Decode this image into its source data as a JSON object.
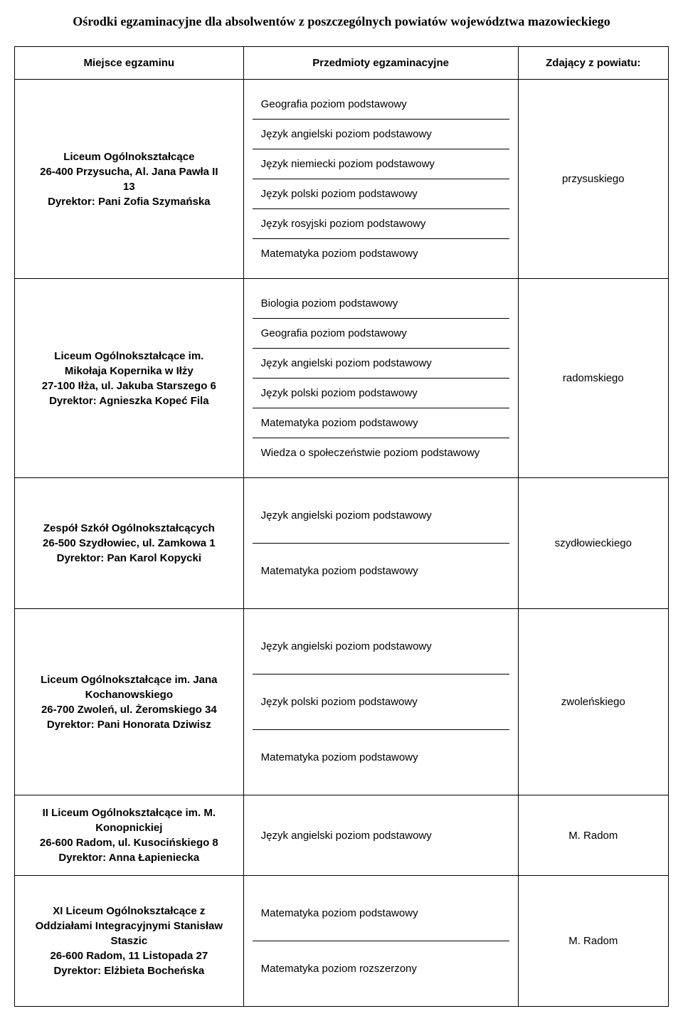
{
  "title": "Ośrodki egzaminacyjne dla absolwentów z poszczególnych powiatów województwa mazowieckiego",
  "headers": {
    "place": "Miejsce egzaminu",
    "subjects": "Przedmioty egzaminacyjne",
    "region": "Zdający z powiatu:"
  },
  "rows": [
    {
      "place": [
        "Liceum Ogólnokształcące",
        "26-400 Przysucha, Al. Jana Pawła II",
        "13",
        "Dyrektor: Pani Zofia Szymańska"
      ],
      "subjects": [
        "Geografia poziom podstawowy",
        "Język angielski poziom podstawowy",
        "Język niemiecki poziom podstawowy",
        "Język polski poziom podstawowy",
        "Język rosyjski poziom podstawowy",
        "Matematyka poziom podstawowy"
      ],
      "region": "przysuskiego"
    },
    {
      "place": [
        "Liceum Ogólnokształcące im.",
        "Mikołaja Kopernika w Iłży",
        "27-100 Iłża, ul. Jakuba Starszego 6",
        "Dyrektor: Agnieszka Kopeć Fila"
      ],
      "subjects": [
        "Biologia poziom podstawowy",
        "Geografia poziom podstawowy",
        "Język angielski poziom podstawowy",
        "Język polski poziom podstawowy",
        "Matematyka poziom podstawowy",
        "Wiedza o społeczeństwie poziom podstawowy"
      ],
      "region": "radomskiego"
    },
    {
      "place": [
        "Zespół Szkół Ogólnokształcących",
        "26-500 Szydłowiec, ul. Zamkowa 1",
        "Dyrektor: Pan Karol Kopycki"
      ],
      "subjects_wide": [
        "Język angielski poziom podstawowy",
        "Matematyka poziom podstawowy"
      ],
      "region": "szydłowieckiego"
    },
    {
      "place": [
        "Liceum Ogólnokształcące im. Jana",
        "Kochanowskiego",
        "26-700 Zwoleń, ul. Żeromskiego 34",
        "Dyrektor: Pani Honorata Dziwisz"
      ],
      "subjects_wide": [
        "Język angielski poziom podstawowy",
        "Język polski poziom podstawowy",
        "Matematyka poziom podstawowy"
      ],
      "region": "zwoleńskiego"
    },
    {
      "place": [
        "II Liceum Ogólnokształcące im. M.",
        "Konopnickiej",
        "26-600 Radom, ul. Kusocińskiego 8",
        "Dyrektor: Anna Łapieniecka"
      ],
      "subjects_wide": [
        "Język angielski poziom podstawowy"
      ],
      "region": "M. Radom"
    },
    {
      "place": [
        "XI Liceum Ogólnokształcące z",
        "Oddziałami Integracyjnymi Stanisław",
        "Staszic",
        "26-600 Radom, 11 Listopada 27",
        "Dyrektor: Elżbieta Bocheńska"
      ],
      "subjects_wide": [
        "Matematyka poziom podstawowy",
        "Matematyka poziom rozszerzony"
      ],
      "region": "M. Radom"
    }
  ]
}
